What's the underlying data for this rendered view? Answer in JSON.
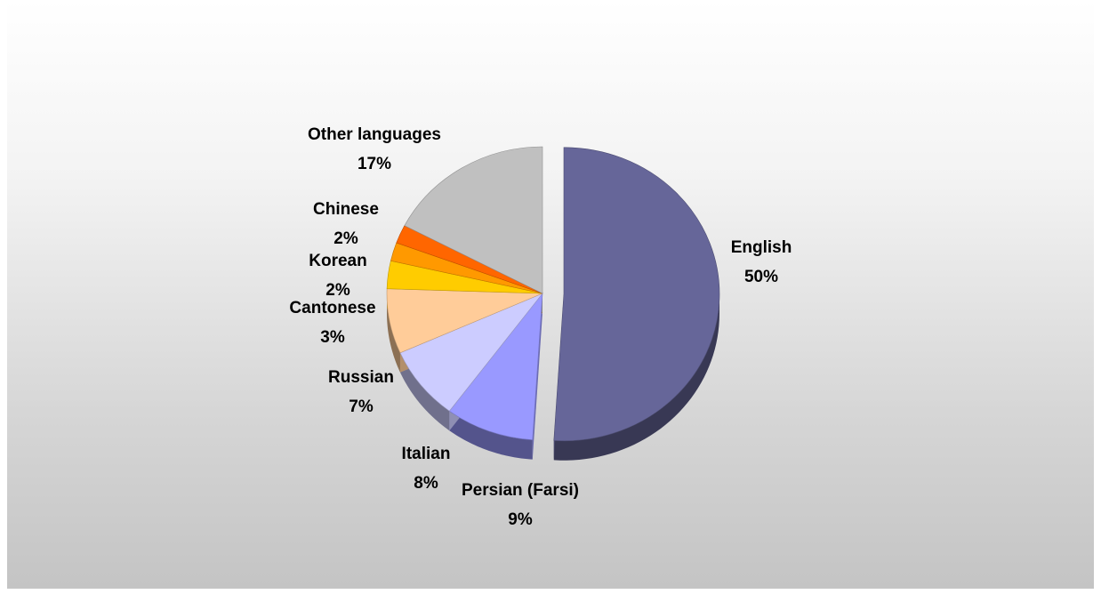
{
  "chart_data": {
    "type": "pie",
    "title": "",
    "slices": [
      {
        "name": "English",
        "value": 50,
        "label": "50%",
        "color": "#666699"
      },
      {
        "name": "Persian (Farsi)",
        "value": 9,
        "label": "9%",
        "color": "#9999ff"
      },
      {
        "name": "Italian",
        "value": 8,
        "label": "8%",
        "color": "#ccccff"
      },
      {
        "name": "Russian",
        "value": 7,
        "label": "7%",
        "color": "#ffcc99"
      },
      {
        "name": "Cantonese",
        "value": 3,
        "label": "3%",
        "color": "#ffcc00"
      },
      {
        "name": "Korean",
        "value": 2,
        "label": "2%",
        "color": "#ff9900"
      },
      {
        "name": "Chinese",
        "value": 2,
        "label": "2%",
        "color": "#ff6600"
      },
      {
        "name": "Other languages",
        "value": 17,
        "label": "17%",
        "color": "#c0c0c0"
      }
    ],
    "start_angle": "12 o'clock, clockwise",
    "exploded": [
      "English"
    ],
    "style": "3d",
    "legend": "none"
  }
}
